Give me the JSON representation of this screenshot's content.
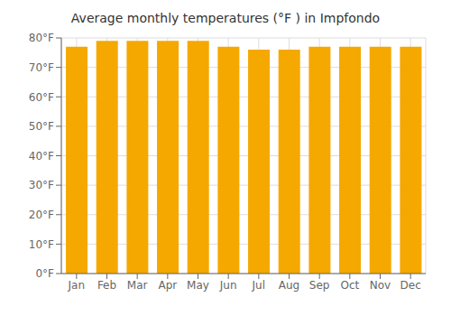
{
  "chart_data": {
    "type": "bar",
    "title": "Average monthly temperatures (°F ) in Impfondo",
    "categories": [
      "Jan",
      "Feb",
      "Mar",
      "Apr",
      "May",
      "Jun",
      "Jul",
      "Aug",
      "Sep",
      "Oct",
      "Nov",
      "Dec"
    ],
    "values": [
      77,
      79,
      79,
      79,
      79,
      77,
      76,
      76,
      77,
      77,
      77,
      77
    ],
    "color": "#F5A800",
    "ylim": [
      0,
      80
    ],
    "yticks": [
      {
        "value": 0,
        "label": "0°F"
      },
      {
        "value": 10,
        "label": "10°F"
      },
      {
        "value": 20,
        "label": "20°F"
      },
      {
        "value": 30,
        "label": "30°F"
      },
      {
        "value": 40,
        "label": "40°F"
      },
      {
        "value": 50,
        "label": "50°F"
      },
      {
        "value": 60,
        "label": "60°F"
      },
      {
        "value": 70,
        "label": "70°F"
      },
      {
        "value": 80,
        "label": "80°F"
      }
    ],
    "grid": true
  }
}
